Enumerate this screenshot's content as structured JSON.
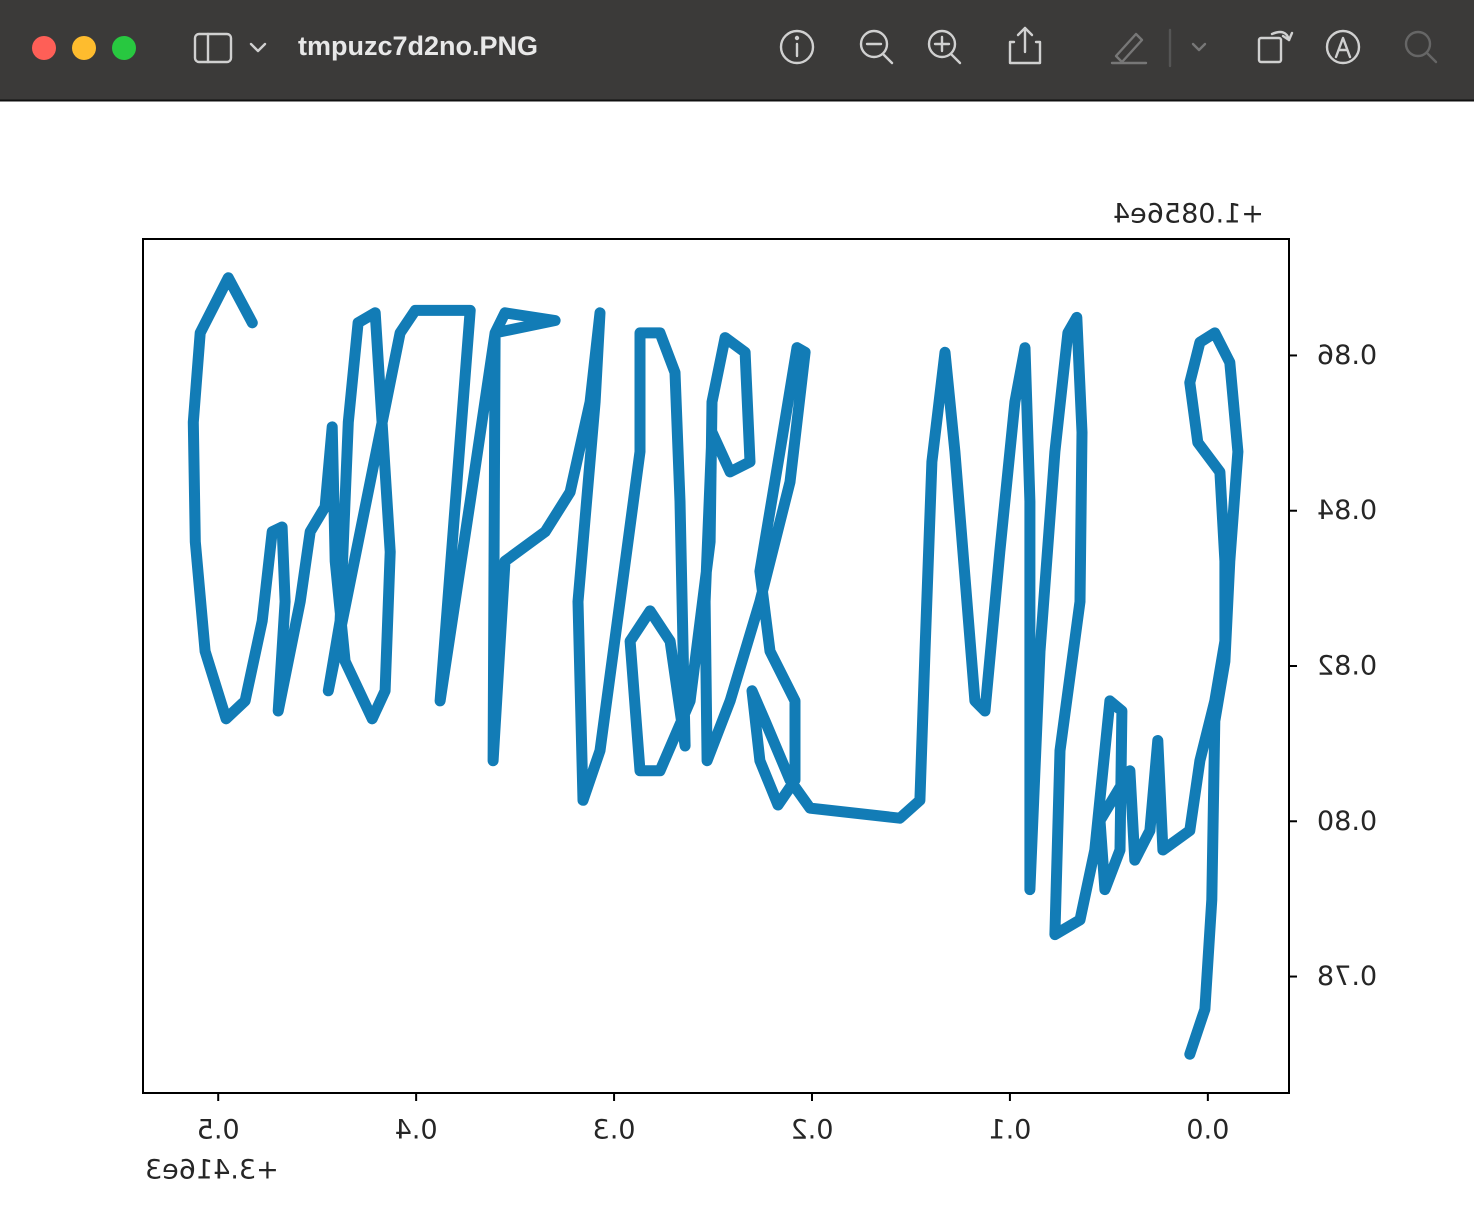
{
  "window": {
    "title": "tmpuzc7d2no.PNG"
  },
  "chart_data": {
    "type": "line",
    "color": "#0a78b4",
    "x_offset_label": "+3.416e3",
    "y_offset_label": "+1.0856e4",
    "mirrored": true,
    "xlim": [
      0.538,
      -0.041
    ],
    "ylim": [
      0.765,
      0.875
    ],
    "xticks": [
      {
        "value": 0,
        "label": "0.0"
      },
      0.1,
      0.2,
      0.3,
      0.4,
      0.5
    ],
    "yticks": [
      0.78,
      {
        "value": 0.8,
        "label": "0.80"
      },
      0.82,
      0.84,
      0.86
    ],
    "x": [
      0.4828,
      0.4949,
      0.5091,
      0.5126,
      0.5116,
      0.5066,
      0.496,
      0.4864,
      0.4778,
      0.4727,
      0.4677,
      0.4662,
      0.4697,
      0.4586,
      0.4535,
      0.446,
      0.4424,
      0.4409,
      0.4359,
      0.4222,
      0.4157,
      0.4131,
      0.4207,
      0.4293,
      0.4343,
      0.4384,
      0.4444,
      0.4081,
      0.4005,
      0.3727,
      0.3879,
      0.3727,
      0.3601,
      0.3551,
      0.3298,
      0.3601,
      0.3611,
      0.3551,
      0.3348,
      0.3222,
      0.3121,
      0.3071,
      0.3096,
      0.3182,
      0.3157,
      0.3071,
      0.297,
      0.2869,
      0.2869,
      0.2768,
      0.2692,
      0.2667,
      0.2641,
      0.2717,
      0.2818,
      0.2919,
      0.2869,
      0.2768,
      0.2616,
      0.2515,
      0.2505,
      0.2439,
      0.2338,
      0.2313,
      0.2414,
      0.2505,
      0.254,
      0.253,
      0.2414,
      0.2263,
      0.2111,
      0.2035,
      0.2076,
      0.2162,
      0.2263,
      0.2212,
      0.2086,
      0.2086,
      0.2172,
      0.2263,
      0.2303,
      0.2237,
      0.2111,
      0.201,
      0.1556,
      0.1455,
      0.1429,
      0.1394,
      0.1328,
      0.1278,
      0.1177,
      0.1126,
      0.1051,
      0.0975,
      0.0924,
      0.0899,
      0.0899,
      0.0848,
      0.0773,
      0.0707,
      0.0662,
      0.0636,
      0.0646,
      0.0747,
      0.0773,
      0.0646,
      0.0571,
      0.0495,
      0.0434,
      0.0444,
      0.052,
      0.0545,
      0.0394,
      0.0369,
      0.0293,
      0.0253,
      0.0227,
      0.0091,
      0.004,
      -0.0035,
      -0.0086,
      -0.0086,
      -0.0061,
      0.0051,
      0.0091,
      0.004,
      -0.0035,
      -0.0111,
      -0.0152,
      -0.0111,
      -0.0086,
      -0.0035,
      -0.002,
      0.0015,
      0.0091
    ],
    "values": [
      0.8642,
      0.87,
      0.8629,
      0.8514,
      0.836,
      0.8219,
      0.8132,
      0.8155,
      0.8258,
      0.8373,
      0.8379,
      0.8283,
      0.8142,
      0.8283,
      0.8373,
      0.8405,
      0.8508,
      0.8335,
      0.8206,
      0.8132,
      0.8168,
      0.8347,
      0.8655,
      0.8642,
      0.8514,
      0.8258,
      0.8168,
      0.8629,
      0.8658,
      0.8658,
      0.8155,
      0.8412,
      0.8629,
      0.8655,
      0.8645,
      0.8629,
      0.8078,
      0.8335,
      0.8373,
      0.8424,
      0.854,
      0.8655,
      0.854,
      0.8283,
      0.8027,
      0.8091,
      0.8283,
      0.8476,
      0.8629,
      0.8629,
      0.8578,
      0.8412,
      0.8097,
      0.8232,
      0.8271,
      0.8232,
      0.8065,
      0.8065,
      0.8155,
      0.836,
      0.854,
      0.8623,
      0.8604,
      0.8463,
      0.845,
      0.8501,
      0.8283,
      0.8078,
      0.8155,
      0.8283,
      0.8437,
      0.8604,
      0.861,
      0.8476,
      0.8322,
      0.8219,
      0.8155,
      0.8053,
      0.8021,
      0.8078,
      0.8168,
      0.8129,
      0.8053,
      0.8017,
      0.8004,
      0.8027,
      0.8219,
      0.8463,
      0.8604,
      0.8476,
      0.8155,
      0.8142,
      0.8347,
      0.854,
      0.861,
      0.8412,
      0.7912,
      0.8219,
      0.8476,
      0.8629,
      0.8649,
      0.8501,
      0.8283,
      0.8091,
      0.7854,
      0.7873,
      0.7963,
      0.8155,
      0.8142,
      0.7963,
      0.7912,
      0.8001,
      0.8065,
      0.795,
      0.7988,
      0.8104,
      0.7963,
      0.7988,
      0.8078,
      0.8155,
      0.8232,
      0.8335,
      0.845,
      0.8488,
      0.8565,
      0.8617,
      0.8629,
      0.8591,
      0.8476,
      0.8335,
      0.8206,
      0.8129,
      0.7899,
      0.7758,
      0.77
    ]
  }
}
